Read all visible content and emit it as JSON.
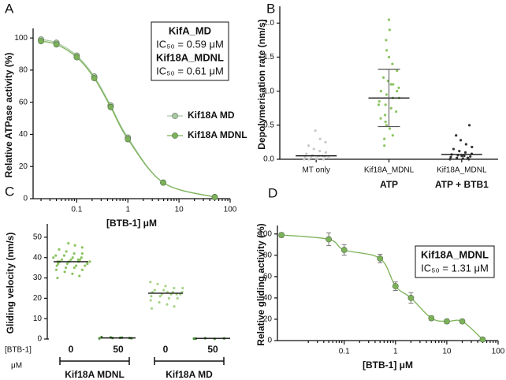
{
  "chart_data": [
    {
      "type": "scatter",
      "panel": "A",
      "xscale": "log",
      "xlabel": "[BTB-1] μM",
      "ylabel": "Relative ATPase activity (%)",
      "xlim": [
        0.014,
        100
      ],
      "ylim": [
        0,
        104
      ],
      "xticks": [
        0.1,
        1,
        10,
        100
      ],
      "yticks": [
        0,
        20,
        40,
        60,
        80,
        100
      ],
      "fit_line": true,
      "legend": "right",
      "annotations": [
        {
          "text": "KifA_MD",
          "bold": true
        },
        {
          "text": "IC₅₀ = 0.59 μM",
          "bold": false
        },
        {
          "text": "Kif18A_MDNL",
          "bold": true
        },
        {
          "text": "IC₅₀ = 0.61 μM",
          "bold": false
        }
      ],
      "series": [
        {
          "name": "Kif18A MD",
          "color": "#a9c9a4",
          "x": [
            0.02,
            0.04,
            0.1,
            0.22,
            0.46,
            1,
            4.9,
            50
          ],
          "values": [
            99,
            97,
            89,
            76,
            58,
            38,
            10,
            1
          ]
        },
        {
          "name": "Kif18A MDNL",
          "color": "#7bb257",
          "x": [
            0.02,
            0.04,
            0.1,
            0.22,
            0.46,
            1,
            4.9,
            50
          ],
          "values": [
            98,
            96,
            88,
            75,
            57,
            37,
            10,
            1
          ]
        }
      ]
    },
    {
      "type": "strip",
      "panel": "B",
      "ylabel": "Depolymerisation rate (nm/s)",
      "ylim": [
        0,
        2.2
      ],
      "yticks": [
        {
          "value": 0,
          "label": "0.0"
        },
        0.5,
        {
          "value": 1,
          "label": "1.0"
        },
        1.5,
        {
          "value": 2,
          "label": "2.0"
        }
      ],
      "categories": [
        "MT only",
        "Kif18A_MDNL",
        "Kif18A_MDNL"
      ],
      "groups": [
        {
          "label": "ATP",
          "category": 1
        },
        {
          "label": "ATP + BTB1",
          "category": 2
        }
      ],
      "colors": [
        "#c8c8c8",
        "#8cc461",
        "#333333"
      ],
      "points": [
        [
          0,
          0,
          0.01,
          0.02,
          0.03,
          0.04,
          0.05,
          0.06,
          0.08,
          0.1,
          0.12,
          0.15,
          0.2,
          0.25,
          0.3,
          0.42,
          0,
          0.02,
          0.05,
          0.01
        ],
        [
          0.2,
          0.35,
          0.45,
          0.55,
          0.6,
          0.7,
          0.75,
          0.8,
          0.85,
          0.9,
          0.9,
          0.95,
          1.0,
          1.05,
          1.1,
          1.15,
          1.2,
          1.3,
          1.4,
          1.5,
          1.6,
          1.75,
          1.9,
          2.05,
          0.65,
          0.8,
          1.0,
          1.1,
          0.5,
          0.3
        ],
        [
          0,
          0,
          0.01,
          0.02,
          0.03,
          0.04,
          0.05,
          0.06,
          0.07,
          0.08,
          0.1,
          0.12,
          0.15,
          0.18,
          0.22,
          0.28,
          0.35,
          0.5,
          0.02,
          0.05
        ]
      ],
      "means": [
        0.05,
        0.9,
        0.07
      ],
      "sd": [
        null,
        0.42,
        null
      ]
    },
    {
      "type": "strip",
      "panel": "C",
      "ylabel": "Gliding velocity (nm/s)",
      "ylim": [
        0,
        55
      ],
      "yticks": [
        0,
        10,
        20,
        30,
        40,
        50
      ],
      "categories": [
        "0",
        "50",
        "0",
        "50"
      ],
      "xlabel": "[BTB-1]",
      "xunit": "μM",
      "brackets": [
        {
          "label": "Kif18A  MDNL",
          "from": 0,
          "to": 1
        },
        {
          "label": "Kif18A  MD",
          "from": 2,
          "to": 3
        }
      ],
      "colors": [
        "#8cc461",
        "#4c8a3a",
        "#a8d48a",
        "#4c8a3a"
      ],
      "points": [
        [
          30,
          31,
          32,
          33,
          34,
          34,
          35,
          35,
          36,
          36,
          36,
          37,
          37,
          37,
          38,
          38,
          38,
          38,
          39,
          39,
          39,
          40,
          40,
          40,
          41,
          41,
          42,
          42,
          43,
          44,
          45,
          46,
          47,
          38,
          37,
          39
        ],
        [
          0.3,
          0.5,
          0.6,
          0.8,
          1.0,
          0.4,
          0.7,
          0.5
        ],
        [
          15,
          16,
          17,
          18,
          19,
          20,
          20,
          21,
          21,
          22,
          22,
          22,
          23,
          23,
          23,
          24,
          24,
          25,
          25,
          26,
          27,
          28,
          22,
          23
        ],
        [
          0.2,
          0.3,
          0.1,
          0.4,
          0.2
        ]
      ],
      "means": [
        38,
        0.5,
        22.5,
        0.3
      ]
    },
    {
      "type": "scatter",
      "panel": "D",
      "xscale": "log",
      "xlabel": "[BTB-1] μM",
      "ylabel": "Relative gliding activity (%)",
      "xlim": [
        0.005,
        100
      ],
      "ylim": [
        0,
        105
      ],
      "xticks": [
        0.1,
        1,
        10,
        100
      ],
      "yticks": [
        0,
        20,
        40,
        60,
        80,
        100
      ],
      "fit_line": true,
      "annotations": [
        {
          "text": "Kif18A_MDNL",
          "bold": true
        },
        {
          "text": "IC₅₀ = 1.31 μM",
          "bold": false
        }
      ],
      "series": [
        {
          "color": "#7bb257",
          "x": [
            0.006,
            0.05,
            0.1,
            0.5,
            1,
            2,
            5,
            10,
            20,
            50
          ],
          "values": [
            99,
            95,
            85,
            77,
            51,
            40,
            21,
            18,
            18,
            1
          ],
          "errors": [
            2,
            6,
            5,
            4,
            4,
            5,
            2,
            2,
            1,
            1
          ]
        }
      ]
    }
  ]
}
